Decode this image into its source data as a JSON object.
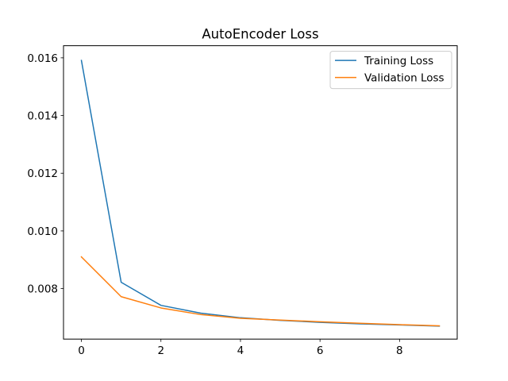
{
  "chart_data": {
    "type": "line",
    "title": "AutoEncoder Loss",
    "xlabel": "",
    "ylabel": "",
    "xlim": [
      -0.45,
      9.45
    ],
    "ylim": [
      0.00625,
      0.01642
    ],
    "x": [
      0,
      1,
      2,
      3,
      4,
      5,
      6,
      7,
      8,
      9
    ],
    "x_ticks": [
      0,
      2,
      4,
      6,
      8
    ],
    "x_tick_labels": [
      "0",
      "2",
      "4",
      "6",
      "8"
    ],
    "y_ticks": [
      0.008,
      0.01,
      0.012,
      0.014,
      0.016
    ],
    "y_tick_labels": [
      "0.008",
      "0.010",
      "0.012",
      "0.014",
      "0.016"
    ],
    "grid": false,
    "legend_position": "top-right",
    "series": [
      {
        "name": "Training Loss",
        "color": "#1f77b4",
        "values": [
          0.01591,
          0.00822,
          0.00742,
          0.00715,
          0.00699,
          0.0069,
          0.00683,
          0.00678,
          0.00674,
          0.0067
        ]
      },
      {
        "name": "Validation Loss",
        "color": "#ff7f0e",
        "values": [
          0.0091,
          0.00772,
          0.00733,
          0.0071,
          0.00697,
          0.00691,
          0.00685,
          0.0068,
          0.00675,
          0.00671
        ]
      }
    ]
  }
}
